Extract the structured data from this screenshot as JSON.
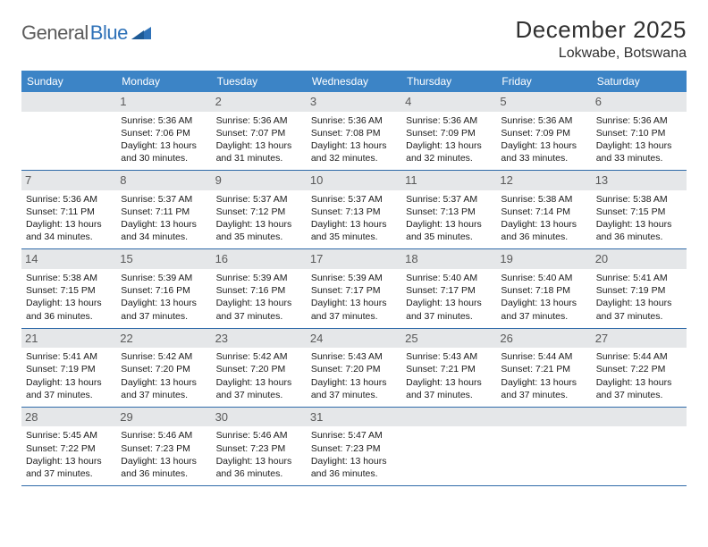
{
  "logo": {
    "text1": "General",
    "text2": "Blue"
  },
  "title": "December 2025",
  "location": "Lokwabe, Botswana",
  "colors": {
    "header_bg": "#3c84c6",
    "header_text": "#ffffff",
    "row_border": "#2f6aa8",
    "daynum_bg": "#e5e7e9",
    "daynum_text": "#5a5a5a",
    "body_text": "#1a1a1a",
    "title_text": "#303030",
    "logo_gray": "#5b5b5b",
    "logo_blue": "#2f72b8"
  },
  "daysOfWeek": [
    "Sunday",
    "Monday",
    "Tuesday",
    "Wednesday",
    "Thursday",
    "Friday",
    "Saturday"
  ],
  "weeks": [
    [
      {
        "n": "",
        "sr": "",
        "ss": "",
        "dl": ""
      },
      {
        "n": "1",
        "sr": "Sunrise: 5:36 AM",
        "ss": "Sunset: 7:06 PM",
        "dl": "Daylight: 13 hours and 30 minutes."
      },
      {
        "n": "2",
        "sr": "Sunrise: 5:36 AM",
        "ss": "Sunset: 7:07 PM",
        "dl": "Daylight: 13 hours and 31 minutes."
      },
      {
        "n": "3",
        "sr": "Sunrise: 5:36 AM",
        "ss": "Sunset: 7:08 PM",
        "dl": "Daylight: 13 hours and 32 minutes."
      },
      {
        "n": "4",
        "sr": "Sunrise: 5:36 AM",
        "ss": "Sunset: 7:09 PM",
        "dl": "Daylight: 13 hours and 32 minutes."
      },
      {
        "n": "5",
        "sr": "Sunrise: 5:36 AM",
        "ss": "Sunset: 7:09 PM",
        "dl": "Daylight: 13 hours and 33 minutes."
      },
      {
        "n": "6",
        "sr": "Sunrise: 5:36 AM",
        "ss": "Sunset: 7:10 PM",
        "dl": "Daylight: 13 hours and 33 minutes."
      }
    ],
    [
      {
        "n": "7",
        "sr": "Sunrise: 5:36 AM",
        "ss": "Sunset: 7:11 PM",
        "dl": "Daylight: 13 hours and 34 minutes."
      },
      {
        "n": "8",
        "sr": "Sunrise: 5:37 AM",
        "ss": "Sunset: 7:11 PM",
        "dl": "Daylight: 13 hours and 34 minutes."
      },
      {
        "n": "9",
        "sr": "Sunrise: 5:37 AM",
        "ss": "Sunset: 7:12 PM",
        "dl": "Daylight: 13 hours and 35 minutes."
      },
      {
        "n": "10",
        "sr": "Sunrise: 5:37 AM",
        "ss": "Sunset: 7:13 PM",
        "dl": "Daylight: 13 hours and 35 minutes."
      },
      {
        "n": "11",
        "sr": "Sunrise: 5:37 AM",
        "ss": "Sunset: 7:13 PM",
        "dl": "Daylight: 13 hours and 35 minutes."
      },
      {
        "n": "12",
        "sr": "Sunrise: 5:38 AM",
        "ss": "Sunset: 7:14 PM",
        "dl": "Daylight: 13 hours and 36 minutes."
      },
      {
        "n": "13",
        "sr": "Sunrise: 5:38 AM",
        "ss": "Sunset: 7:15 PM",
        "dl": "Daylight: 13 hours and 36 minutes."
      }
    ],
    [
      {
        "n": "14",
        "sr": "Sunrise: 5:38 AM",
        "ss": "Sunset: 7:15 PM",
        "dl": "Daylight: 13 hours and 36 minutes."
      },
      {
        "n": "15",
        "sr": "Sunrise: 5:39 AM",
        "ss": "Sunset: 7:16 PM",
        "dl": "Daylight: 13 hours and 37 minutes."
      },
      {
        "n": "16",
        "sr": "Sunrise: 5:39 AM",
        "ss": "Sunset: 7:16 PM",
        "dl": "Daylight: 13 hours and 37 minutes."
      },
      {
        "n": "17",
        "sr": "Sunrise: 5:39 AM",
        "ss": "Sunset: 7:17 PM",
        "dl": "Daylight: 13 hours and 37 minutes."
      },
      {
        "n": "18",
        "sr": "Sunrise: 5:40 AM",
        "ss": "Sunset: 7:17 PM",
        "dl": "Daylight: 13 hours and 37 minutes."
      },
      {
        "n": "19",
        "sr": "Sunrise: 5:40 AM",
        "ss": "Sunset: 7:18 PM",
        "dl": "Daylight: 13 hours and 37 minutes."
      },
      {
        "n": "20",
        "sr": "Sunrise: 5:41 AM",
        "ss": "Sunset: 7:19 PM",
        "dl": "Daylight: 13 hours and 37 minutes."
      }
    ],
    [
      {
        "n": "21",
        "sr": "Sunrise: 5:41 AM",
        "ss": "Sunset: 7:19 PM",
        "dl": "Daylight: 13 hours and 37 minutes."
      },
      {
        "n": "22",
        "sr": "Sunrise: 5:42 AM",
        "ss": "Sunset: 7:20 PM",
        "dl": "Daylight: 13 hours and 37 minutes."
      },
      {
        "n": "23",
        "sr": "Sunrise: 5:42 AM",
        "ss": "Sunset: 7:20 PM",
        "dl": "Daylight: 13 hours and 37 minutes."
      },
      {
        "n": "24",
        "sr": "Sunrise: 5:43 AM",
        "ss": "Sunset: 7:20 PM",
        "dl": "Daylight: 13 hours and 37 minutes."
      },
      {
        "n": "25",
        "sr": "Sunrise: 5:43 AM",
        "ss": "Sunset: 7:21 PM",
        "dl": "Daylight: 13 hours and 37 minutes."
      },
      {
        "n": "26",
        "sr": "Sunrise: 5:44 AM",
        "ss": "Sunset: 7:21 PM",
        "dl": "Daylight: 13 hours and 37 minutes."
      },
      {
        "n": "27",
        "sr": "Sunrise: 5:44 AM",
        "ss": "Sunset: 7:22 PM",
        "dl": "Daylight: 13 hours and 37 minutes."
      }
    ],
    [
      {
        "n": "28",
        "sr": "Sunrise: 5:45 AM",
        "ss": "Sunset: 7:22 PM",
        "dl": "Daylight: 13 hours and 37 minutes."
      },
      {
        "n": "29",
        "sr": "Sunrise: 5:46 AM",
        "ss": "Sunset: 7:23 PM",
        "dl": "Daylight: 13 hours and 36 minutes."
      },
      {
        "n": "30",
        "sr": "Sunrise: 5:46 AM",
        "ss": "Sunset: 7:23 PM",
        "dl": "Daylight: 13 hours and 36 minutes."
      },
      {
        "n": "31",
        "sr": "Sunrise: 5:47 AM",
        "ss": "Sunset: 7:23 PM",
        "dl": "Daylight: 13 hours and 36 minutes."
      },
      {
        "n": "",
        "sr": "",
        "ss": "",
        "dl": ""
      },
      {
        "n": "",
        "sr": "",
        "ss": "",
        "dl": ""
      },
      {
        "n": "",
        "sr": "",
        "ss": "",
        "dl": ""
      }
    ]
  ]
}
